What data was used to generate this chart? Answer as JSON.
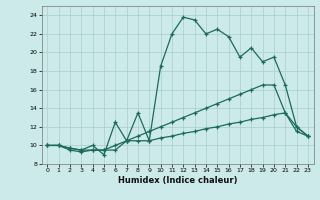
{
  "xlabel": "Humidex (Indice chaleur)",
  "background_color": "#cceaea",
  "grid_color": "#aacccc",
  "line_color": "#1a6b5a",
  "xlim": [
    -0.5,
    23.5
  ],
  "ylim": [
    8,
    25
  ],
  "xticks": [
    0,
    1,
    2,
    3,
    4,
    5,
    6,
    7,
    8,
    9,
    10,
    11,
    12,
    13,
    14,
    15,
    16,
    17,
    18,
    19,
    20,
    21,
    22,
    23
  ],
  "yticks": [
    8,
    10,
    12,
    14,
    16,
    18,
    20,
    22,
    24
  ],
  "line1_x": [
    0,
    1,
    2,
    3,
    4,
    5,
    6,
    7,
    8,
    9,
    10,
    11,
    12,
    13,
    14,
    15,
    16,
    17,
    18,
    19,
    20,
    21,
    22,
    23
  ],
  "line1_y": [
    10,
    10,
    9.5,
    9.3,
    9.5,
    9.5,
    9.5,
    10.5,
    10.5,
    10.5,
    10.8,
    11.0,
    11.3,
    11.5,
    11.8,
    12.0,
    12.3,
    12.5,
    12.8,
    13.0,
    13.3,
    13.5,
    11.5,
    11.0
  ],
  "line2_x": [
    0,
    1,
    2,
    3,
    4,
    5,
    6,
    7,
    8,
    9,
    10,
    11,
    12,
    13,
    14,
    15,
    16,
    17,
    18,
    19,
    20,
    21,
    22,
    23
  ],
  "line2_y": [
    10,
    10,
    9.7,
    9.5,
    10.0,
    9.0,
    12.5,
    10.5,
    13.5,
    10.5,
    18.5,
    22.0,
    23.8,
    23.5,
    22.0,
    22.5,
    21.7,
    19.5,
    20.5,
    19.0,
    19.5,
    16.5,
    12.0,
    11.0
  ],
  "line3_x": [
    0,
    1,
    2,
    3,
    4,
    5,
    6,
    7,
    8,
    9,
    10,
    11,
    12,
    13,
    14,
    15,
    16,
    17,
    18,
    19,
    20,
    21,
    22,
    23
  ],
  "line3_y": [
    10,
    10,
    9.7,
    9.5,
    9.5,
    9.5,
    10.0,
    10.5,
    11.0,
    11.5,
    12.0,
    12.5,
    13.0,
    13.5,
    14.0,
    14.5,
    15.0,
    15.5,
    16.0,
    16.5,
    16.5,
    13.5,
    12.0,
    11.0
  ]
}
